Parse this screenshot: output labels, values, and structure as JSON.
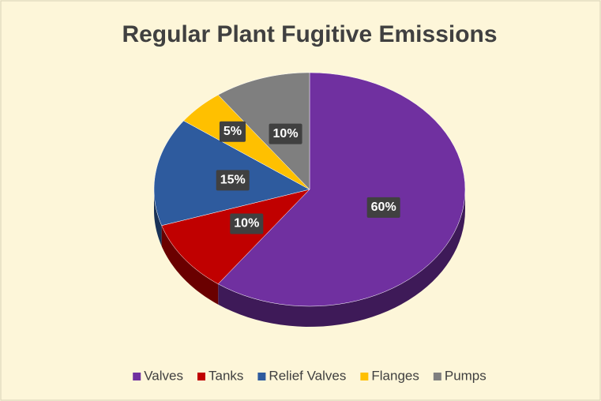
{
  "chart_data": {
    "type": "pie",
    "title": "Regular Plant Fugitive Emissions",
    "categories": [
      "Valves",
      "Tanks",
      "Relief Valves",
      "Flanges",
      "Pumps"
    ],
    "values": [
      60,
      10,
      15,
      5,
      10
    ],
    "value_labels": [
      "60%",
      "10%",
      "15%",
      "5%",
      "10%"
    ],
    "colors": [
      "#7030a0",
      "#c00000",
      "#2e5b9e",
      "#ffc000",
      "#7f7f7f"
    ],
    "legend": "bottom"
  }
}
